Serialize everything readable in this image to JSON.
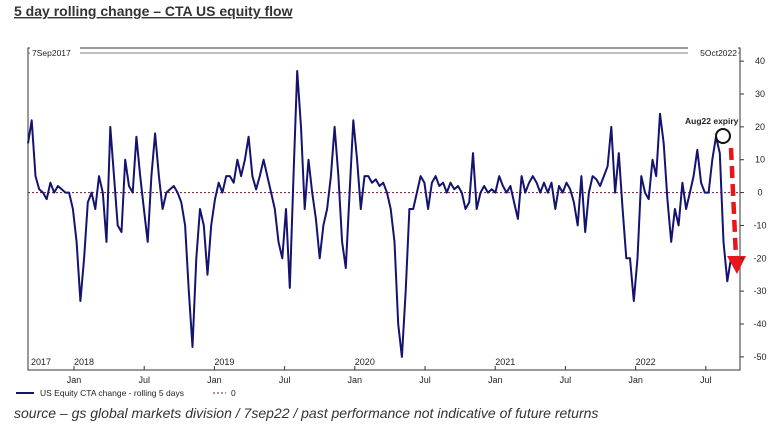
{
  "chart_data": {
    "type": "line",
    "title": "5 day rolling change – CTA US equity flow",
    "start_label": "7Sep2017",
    "end_label": "5Oct2022",
    "source": "source – gs global markets division / 7sep22 / past performance not indicative of future returns",
    "annotation": "Aug22 expiry",
    "ylim": [
      -54,
      44
    ],
    "yticks": [
      40,
      30,
      20,
      10,
      0,
      -10,
      -20,
      -30,
      -40,
      -50
    ],
    "month_labels": [
      "Jan",
      "Jul",
      "Jan",
      "Jul",
      "Jan",
      "Jul",
      "Jan",
      "Jul",
      "Jan",
      "Jul"
    ],
    "year_labels": [
      "2017",
      "2018",
      "2019",
      "2020",
      "2021",
      "2022"
    ],
    "reference_line": {
      "name": "0",
      "value": 0,
      "color": "#6b1a3a"
    },
    "series": [
      {
        "name": "US Equity CTA change - rolling 5 days",
        "color": "#141470",
        "values": [
          15,
          22,
          5,
          1,
          0,
          -2,
          3,
          0,
          2,
          1,
          0,
          0,
          -5,
          -15,
          -33,
          -20,
          -3,
          0,
          -5,
          5,
          0,
          -15,
          20,
          5,
          -10,
          -12,
          10,
          2,
          0,
          17,
          5,
          -5,
          -15,
          5,
          18,
          5,
          -5,
          0,
          1,
          2,
          0,
          -3,
          -10,
          -30,
          -47,
          -20,
          -5,
          -10,
          -25,
          -10,
          -2,
          3,
          0,
          5,
          5,
          3,
          10,
          5,
          10,
          17,
          5,
          1,
          5,
          10,
          5,
          0,
          -5,
          -15,
          -20,
          -5,
          -29,
          5,
          37,
          20,
          -5,
          10,
          0,
          -8,
          -20,
          -10,
          -5,
          5,
          20,
          5,
          -15,
          -23,
          0,
          22,
          10,
          -5,
          5,
          5,
          3,
          4,
          2,
          3,
          0,
          -5,
          -15,
          -40,
          -50,
          -30,
          -5,
          -5,
          0,
          5,
          3,
          -5,
          3,
          5,
          2,
          3,
          0,
          3,
          1,
          2,
          0,
          -5,
          -3,
          12,
          -5,
          0,
          2,
          0,
          1,
          0,
          5,
          2,
          0,
          2,
          -3,
          -8,
          5,
          0,
          3,
          5,
          3,
          0,
          3,
          0,
          3,
          -5,
          2,
          0,
          3,
          1,
          -3,
          -10,
          5,
          -12,
          0,
          5,
          4,
          2,
          5,
          8,
          20,
          0,
          12,
          -5,
          -20,
          -20,
          -33,
          -20,
          5,
          0,
          -2,
          10,
          5,
          24,
          15,
          -2,
          -15,
          -5,
          -10,
          3,
          -5,
          0,
          5,
          13,
          3,
          0,
          0,
          10,
          17,
          12,
          -15,
          -27,
          -20
        ]
      }
    ]
  }
}
